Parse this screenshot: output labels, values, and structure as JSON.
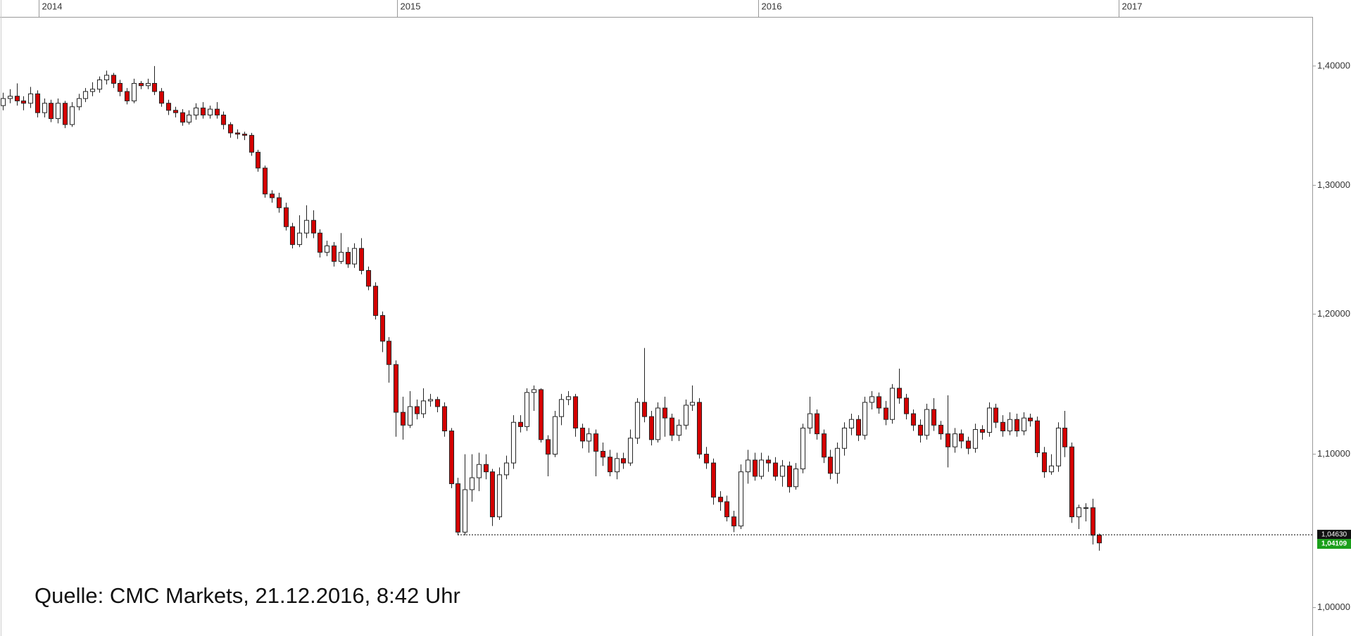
{
  "chart_data": {
    "type": "candlestick",
    "annotation": "Quelle: CMC Markets, 21.12.2016, 8:42 Uhr",
    "log_scale": true,
    "up_color": "#ffffff",
    "down_color": "#d40000",
    "xlim": [
      -0.4,
      189.9
    ],
    "xticks": [
      {
        "value": 5.2,
        "label": "2014"
      },
      {
        "value": 57.2,
        "label": "2015"
      },
      {
        "value": 109.6,
        "label": "2016"
      },
      {
        "value": 161.8,
        "label": "2017"
      }
    ],
    "ylim": [
      0.9825,
      1.4434
    ],
    "yticks": [
      {
        "value": 1.0,
        "label": "1,00000"
      },
      {
        "value": 1.1,
        "label": "1,10000"
      },
      {
        "value": 1.2,
        "label": "1,20000"
      },
      {
        "value": 1.3,
        "label": "1,30000"
      },
      {
        "value": 1.4,
        "label": "1,40000"
      }
    ],
    "reference_line": {
      "value": 1.0463,
      "label": "1,04630"
    },
    "last_price": {
      "value": 1.04109,
      "label": "1,04109"
    },
    "open": [
      1.366,
      1.372,
      1.374,
      1.37,
      1.368,
      1.376,
      1.36,
      1.368,
      1.355,
      1.368,
      1.35,
      1.365,
      1.372,
      1.378,
      1.38,
      1.388,
      1.392,
      1.385,
      1.378,
      1.37,
      1.385,
      1.383,
      1.385,
      1.378,
      1.368,
      1.362,
      1.36,
      1.352,
      1.358,
      1.364,
      1.358,
      1.363,
      1.358,
      1.35,
      1.343,
      1.342,
      1.341,
      1.327,
      1.314,
      1.293,
      1.29,
      1.282,
      1.267,
      1.253,
      1.262,
      1.272,
      1.262,
      1.247,
      1.252,
      1.24,
      1.247,
      1.238,
      1.25,
      1.233,
      1.221,
      1.199,
      1.18,
      1.163,
      1.129,
      1.12,
      1.133,
      1.128,
      1.137,
      1.138,
      1.133,
      1.116,
      1.08,
      1.048,
      1.076,
      1.084,
      1.093,
      1.088,
      1.058,
      1.086,
      1.094,
      1.122,
      1.119,
      1.143,
      1.145,
      1.11,
      1.1,
      1.126,
      1.138,
      1.14,
      1.118,
      1.109,
      1.114,
      1.102,
      1.098,
      1.088,
      1.097,
      1.094,
      1.111,
      1.136,
      1.126,
      1.11,
      1.132,
      1.125,
      1.113,
      1.12,
      1.134,
      1.136,
      1.1,
      1.094,
      1.071,
      1.068,
      1.058,
      1.052,
      1.088,
      1.096,
      1.085,
      1.096,
      1.094,
      1.085,
      1.092,
      1.078,
      1.09,
      1.118,
      1.128,
      1.114,
      1.098,
      1.087,
      1.104,
      1.118,
      1.124,
      1.113,
      1.136,
      1.14,
      1.132,
      1.124,
      1.146,
      1.139,
      1.128,
      1.12,
      1.113,
      1.131,
      1.12,
      1.114,
      1.105,
      1.114,
      1.109,
      1.104,
      1.117,
      1.115,
      1.132,
      1.122,
      1.116,
      1.124,
      1.116,
      1.125,
      1.123,
      1.101,
      1.088,
      1.092,
      1.118,
      1.105,
      1.058,
      1.064,
      1.064,
      1.046
    ],
    "high": [
      1.377,
      1.38,
      1.385,
      1.374,
      1.382,
      1.379,
      1.372,
      1.371,
      1.372,
      1.37,
      1.369,
      1.376,
      1.381,
      1.386,
      1.391,
      1.396,
      1.394,
      1.388,
      1.381,
      1.389,
      1.387,
      1.389,
      1.4,
      1.381,
      1.371,
      1.365,
      1.363,
      1.362,
      1.368,
      1.369,
      1.366,
      1.369,
      1.361,
      1.352,
      1.346,
      1.344,
      1.343,
      1.329,
      1.316,
      1.296,
      1.294,
      1.286,
      1.27,
      1.276,
      1.284,
      1.28,
      1.265,
      1.256,
      1.255,
      1.262,
      1.251,
      1.254,
      1.258,
      1.236,
      1.224,
      1.202,
      1.183,
      1.166,
      1.14,
      1.144,
      1.138,
      1.146,
      1.142,
      1.14,
      1.136,
      1.118,
      1.084,
      1.1,
      1.1,
      1.101,
      1.1,
      1.09,
      1.091,
      1.099,
      1.127,
      1.127,
      1.146,
      1.148,
      1.146,
      1.113,
      1.13,
      1.142,
      1.144,
      1.142,
      1.121,
      1.118,
      1.117,
      1.108,
      1.103,
      1.101,
      1.101,
      1.117,
      1.139,
      1.175,
      1.13,
      1.136,
      1.14,
      1.128,
      1.124,
      1.138,
      1.148,
      1.139,
      1.105,
      1.097,
      1.075,
      1.072,
      1.062,
      1.093,
      1.103,
      1.101,
      1.101,
      1.099,
      1.098,
      1.096,
      1.095,
      1.094,
      1.121,
      1.14,
      1.131,
      1.117,
      1.103,
      1.108,
      1.122,
      1.128,
      1.127,
      1.14,
      1.144,
      1.143,
      1.137,
      1.149,
      1.16,
      1.142,
      1.131,
      1.124,
      1.135,
      1.139,
      1.123,
      1.141,
      1.118,
      1.117,
      1.112,
      1.121,
      1.12,
      1.136,
      1.135,
      1.127,
      1.129,
      1.128,
      1.129,
      1.128,
      1.126,
      1.105,
      1.1,
      1.122,
      1.13,
      1.108,
      1.066,
      1.067,
      1.07,
      1.047
    ],
    "low": [
      1.362,
      1.368,
      1.366,
      1.362,
      1.364,
      1.356,
      1.356,
      1.352,
      1.351,
      1.347,
      1.348,
      1.362,
      1.369,
      1.374,
      1.377,
      1.384,
      1.381,
      1.374,
      1.367,
      1.368,
      1.38,
      1.38,
      1.375,
      1.365,
      1.358,
      1.356,
      1.349,
      1.35,
      1.354,
      1.355,
      1.355,
      1.355,
      1.346,
      1.339,
      1.338,
      1.337,
      1.324,
      1.311,
      1.29,
      1.286,
      1.278,
      1.264,
      1.25,
      1.251,
      1.258,
      1.258,
      1.243,
      1.244,
      1.236,
      1.238,
      1.235,
      1.235,
      1.23,
      1.218,
      1.196,
      1.172,
      1.15,
      1.112,
      1.11,
      1.118,
      1.124,
      1.125,
      1.133,
      1.129,
      1.112,
      1.077,
      1.046,
      1.046,
      1.068,
      1.075,
      1.083,
      1.052,
      1.056,
      1.083,
      1.09,
      1.115,
      1.116,
      1.13,
      1.108,
      1.085,
      1.098,
      1.12,
      1.134,
      1.112,
      1.104,
      1.101,
      1.085,
      1.092,
      1.085,
      1.083,
      1.09,
      1.092,
      1.107,
      1.122,
      1.106,
      1.108,
      1.112,
      1.109,
      1.109,
      1.117,
      1.13,
      1.097,
      1.09,
      1.066,
      1.062,
      1.055,
      1.048,
      1.05,
      1.08,
      1.082,
      1.083,
      1.088,
      1.082,
      1.078,
      1.074,
      1.076,
      1.087,
      1.114,
      1.11,
      1.094,
      1.083,
      1.08,
      1.099,
      1.113,
      1.109,
      1.11,
      1.131,
      1.128,
      1.12,
      1.121,
      1.135,
      1.124,
      1.116,
      1.108,
      1.11,
      1.116,
      1.11,
      1.091,
      1.101,
      1.104,
      1.1,
      1.101,
      1.11,
      1.112,
      1.118,
      1.112,
      1.113,
      1.112,
      1.113,
      1.119,
      1.098,
      1.084,
      1.086,
      1.088,
      1.098,
      1.054,
      1.05,
      1.055,
      1.04,
      1.036
    ],
    "close": [
      1.372,
      1.374,
      1.37,
      1.368,
      1.376,
      1.36,
      1.368,
      1.355,
      1.368,
      1.35,
      1.365,
      1.372,
      1.378,
      1.38,
      1.388,
      1.392,
      1.385,
      1.378,
      1.37,
      1.385,
      1.383,
      1.385,
      1.378,
      1.368,
      1.362,
      1.36,
      1.352,
      1.358,
      1.364,
      1.358,
      1.363,
      1.358,
      1.35,
      1.343,
      1.342,
      1.341,
      1.327,
      1.314,
      1.293,
      1.29,
      1.282,
      1.267,
      1.253,
      1.262,
      1.272,
      1.262,
      1.247,
      1.252,
      1.24,
      1.247,
      1.238,
      1.25,
      1.233,
      1.221,
      1.199,
      1.18,
      1.163,
      1.129,
      1.12,
      1.133,
      1.128,
      1.137,
      1.138,
      1.133,
      1.116,
      1.08,
      1.048,
      1.076,
      1.084,
      1.093,
      1.088,
      1.058,
      1.086,
      1.094,
      1.122,
      1.119,
      1.143,
      1.145,
      1.11,
      1.1,
      1.126,
      1.138,
      1.14,
      1.118,
      1.109,
      1.114,
      1.102,
      1.098,
      1.088,
      1.097,
      1.094,
      1.111,
      1.136,
      1.126,
      1.11,
      1.132,
      1.125,
      1.113,
      1.12,
      1.134,
      1.136,
      1.1,
      1.094,
      1.071,
      1.068,
      1.058,
      1.052,
      1.088,
      1.096,
      1.085,
      1.096,
      1.094,
      1.085,
      1.092,
      1.078,
      1.09,
      1.118,
      1.128,
      1.114,
      1.098,
      1.087,
      1.104,
      1.118,
      1.124,
      1.113,
      1.136,
      1.14,
      1.132,
      1.124,
      1.146,
      1.139,
      1.128,
      1.12,
      1.113,
      1.131,
      1.12,
      1.114,
      1.105,
      1.114,
      1.109,
      1.104,
      1.117,
      1.115,
      1.132,
      1.122,
      1.116,
      1.124,
      1.116,
      1.125,
      1.123,
      1.101,
      1.088,
      1.092,
      1.118,
      1.105,
      1.058,
      1.064,
      1.064,
      1.046,
      1.041
    ]
  }
}
